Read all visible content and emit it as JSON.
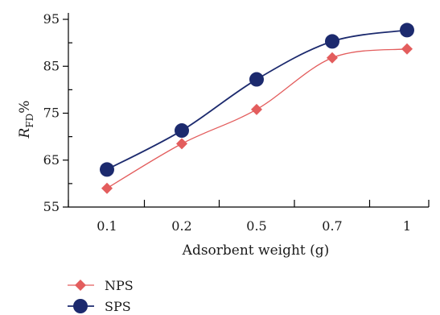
{
  "chart_data": {
    "type": "line",
    "categories": [
      "0.1",
      "0.2",
      "0.5",
      "0.7",
      "1"
    ],
    "series": [
      {
        "name": "NPS",
        "values": [
          59,
          68.5,
          75.8,
          86.8,
          88.7
        ],
        "color": "#e35d5d",
        "marker": "diamond"
      },
      {
        "name": "SPS",
        "values": [
          63,
          71.3,
          82.2,
          90.3,
          92.7
        ],
        "color": "#1c2a6e",
        "marker": "circle"
      }
    ],
    "xlabel": "Adsorbent weight (g)",
    "ylabel": {
      "main": "R",
      "sub": "FD",
      "suffix": "%"
    },
    "ylim": [
      55,
      95
    ],
    "yticks": [
      55,
      65,
      75,
      85,
      95
    ],
    "grid": false,
    "legend_position": "bottom-left"
  }
}
